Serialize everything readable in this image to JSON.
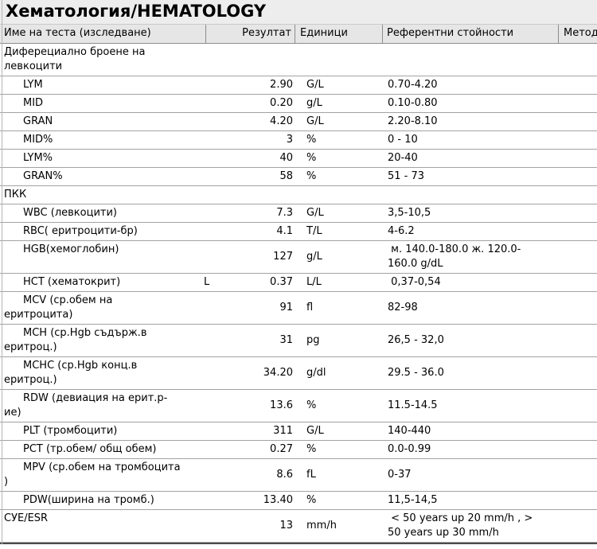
{
  "title": "Хематология/HEMATOLOGY",
  "columns": {
    "name": "Име на теста (изследване)",
    "result": "Резултат",
    "units": "Единици",
    "reference": "Референтни стойности",
    "method": "Метод"
  },
  "rows": [
    {
      "kind": "section",
      "indent": false,
      "name": [
        "Диферециално броене на",
        "левкоцити"
      ],
      "flag": "",
      "result": "",
      "unit": "",
      "ref": []
    },
    {
      "kind": "test",
      "indent": true,
      "name": [
        "LYM"
      ],
      "flag": "",
      "result": "2.90",
      "unit": "G/L",
      "ref": [
        "0.70-4.20"
      ]
    },
    {
      "kind": "test",
      "indent": true,
      "name": [
        "MID"
      ],
      "flag": "",
      "result": "0.20",
      "unit": "g/L",
      "ref": [
        "0.10-0.80"
      ]
    },
    {
      "kind": "test",
      "indent": true,
      "name": [
        "GRAN"
      ],
      "flag": "",
      "result": "4.20",
      "unit": "G/L",
      "ref": [
        "2.20-8.10"
      ]
    },
    {
      "kind": "test",
      "indent": true,
      "name": [
        "MID%"
      ],
      "flag": "",
      "result": "3",
      "unit": "%",
      "ref": [
        "0 - 10"
      ]
    },
    {
      "kind": "test",
      "indent": true,
      "name": [
        "LYM%"
      ],
      "flag": "",
      "result": "40",
      "unit": "%",
      "ref": [
        "20-40"
      ]
    },
    {
      "kind": "test",
      "indent": true,
      "name": [
        "GRAN%"
      ],
      "flag": "",
      "result": "58",
      "unit": "%",
      "ref": [
        "51 - 73"
      ]
    },
    {
      "kind": "section",
      "indent": false,
      "name": [
        "ПКК"
      ],
      "flag": "",
      "result": "",
      "unit": "",
      "ref": []
    },
    {
      "kind": "test",
      "indent": true,
      "name": [
        "WBC (левкоцити)"
      ],
      "flag": "",
      "result": "7.3",
      "unit": "G/L",
      "ref": [
        "3,5-10,5"
      ]
    },
    {
      "kind": "test",
      "indent": true,
      "name": [
        "RBC( еритроцити-бр)"
      ],
      "flag": "",
      "result": "4.1",
      "unit": "T/L",
      "ref": [
        "4-6.2"
      ]
    },
    {
      "kind": "test",
      "indent": true,
      "name": [
        "HGB(хемоглобин)"
      ],
      "flag": "",
      "result": "127",
      "unit": "g/L",
      "ref": [
        " м. 140.0-180.0 ж. 120.0-",
        "160.0 g/dL"
      ]
    },
    {
      "kind": "test",
      "indent": true,
      "name": [
        "HCT (хематокрит)"
      ],
      "flag": "L",
      "result": "0.37",
      "unit": "L/L",
      "ref": [
        " 0,37-0,54"
      ]
    },
    {
      "kind": "test",
      "indent": true,
      "name": [
        "MCV (ср.обем на",
        "еритроцита)"
      ],
      "flag": "",
      "result": "91",
      "unit": "fl",
      "ref": [
        "82-98"
      ]
    },
    {
      "kind": "test",
      "indent": true,
      "name": [
        "MCH (ср.Hgb съдърж.в",
        "еритроц.)"
      ],
      "flag": "",
      "result": "31",
      "unit": "pg",
      "ref": [
        "26,5 - 32,0"
      ]
    },
    {
      "kind": "test",
      "indent": true,
      "name": [
        "MCHC (ср.Hgb конц.в",
        "еритроц.)"
      ],
      "flag": "",
      "result": "34.20",
      "unit": "g/dl",
      "ref": [
        "29.5 - 36.0"
      ]
    },
    {
      "kind": "test",
      "indent": true,
      "name": [
        "RDW (девиация на ерит.р-",
        "ие)"
      ],
      "flag": "",
      "result": "13.6",
      "unit": "%",
      "ref": [
        "11.5-14.5"
      ]
    },
    {
      "kind": "test",
      "indent": true,
      "name": [
        "PLT (тромбоцити)"
      ],
      "flag": "",
      "result": "311",
      "unit": "G/L",
      "ref": [
        "140-440"
      ]
    },
    {
      "kind": "test",
      "indent": true,
      "name": [
        "PCT (тр.обем/ общ обем)"
      ],
      "flag": "",
      "result": "0.27",
      "unit": "%",
      "ref": [
        "0.0-0.99"
      ]
    },
    {
      "kind": "test",
      "indent": true,
      "name": [
        "MPV (ср.обем на тромбоцита",
        ")"
      ],
      "flag": "",
      "result": "8.6",
      "unit": "fL",
      "ref": [
        "0-37"
      ]
    },
    {
      "kind": "test",
      "indent": true,
      "name": [
        "PDW(ширина на тромб.)"
      ],
      "flag": "",
      "result": "13.40",
      "unit": "%",
      "ref": [
        "11,5-14,5"
      ]
    },
    {
      "kind": "test",
      "indent": false,
      "name": [
        "СУЕ/ESR"
      ],
      "flag": "",
      "result": "13",
      "unit": "mm/h",
      "ref": [
        " < 50 years up 20 mm/h , >",
        "50 years up 30 mm/h"
      ]
    }
  ]
}
